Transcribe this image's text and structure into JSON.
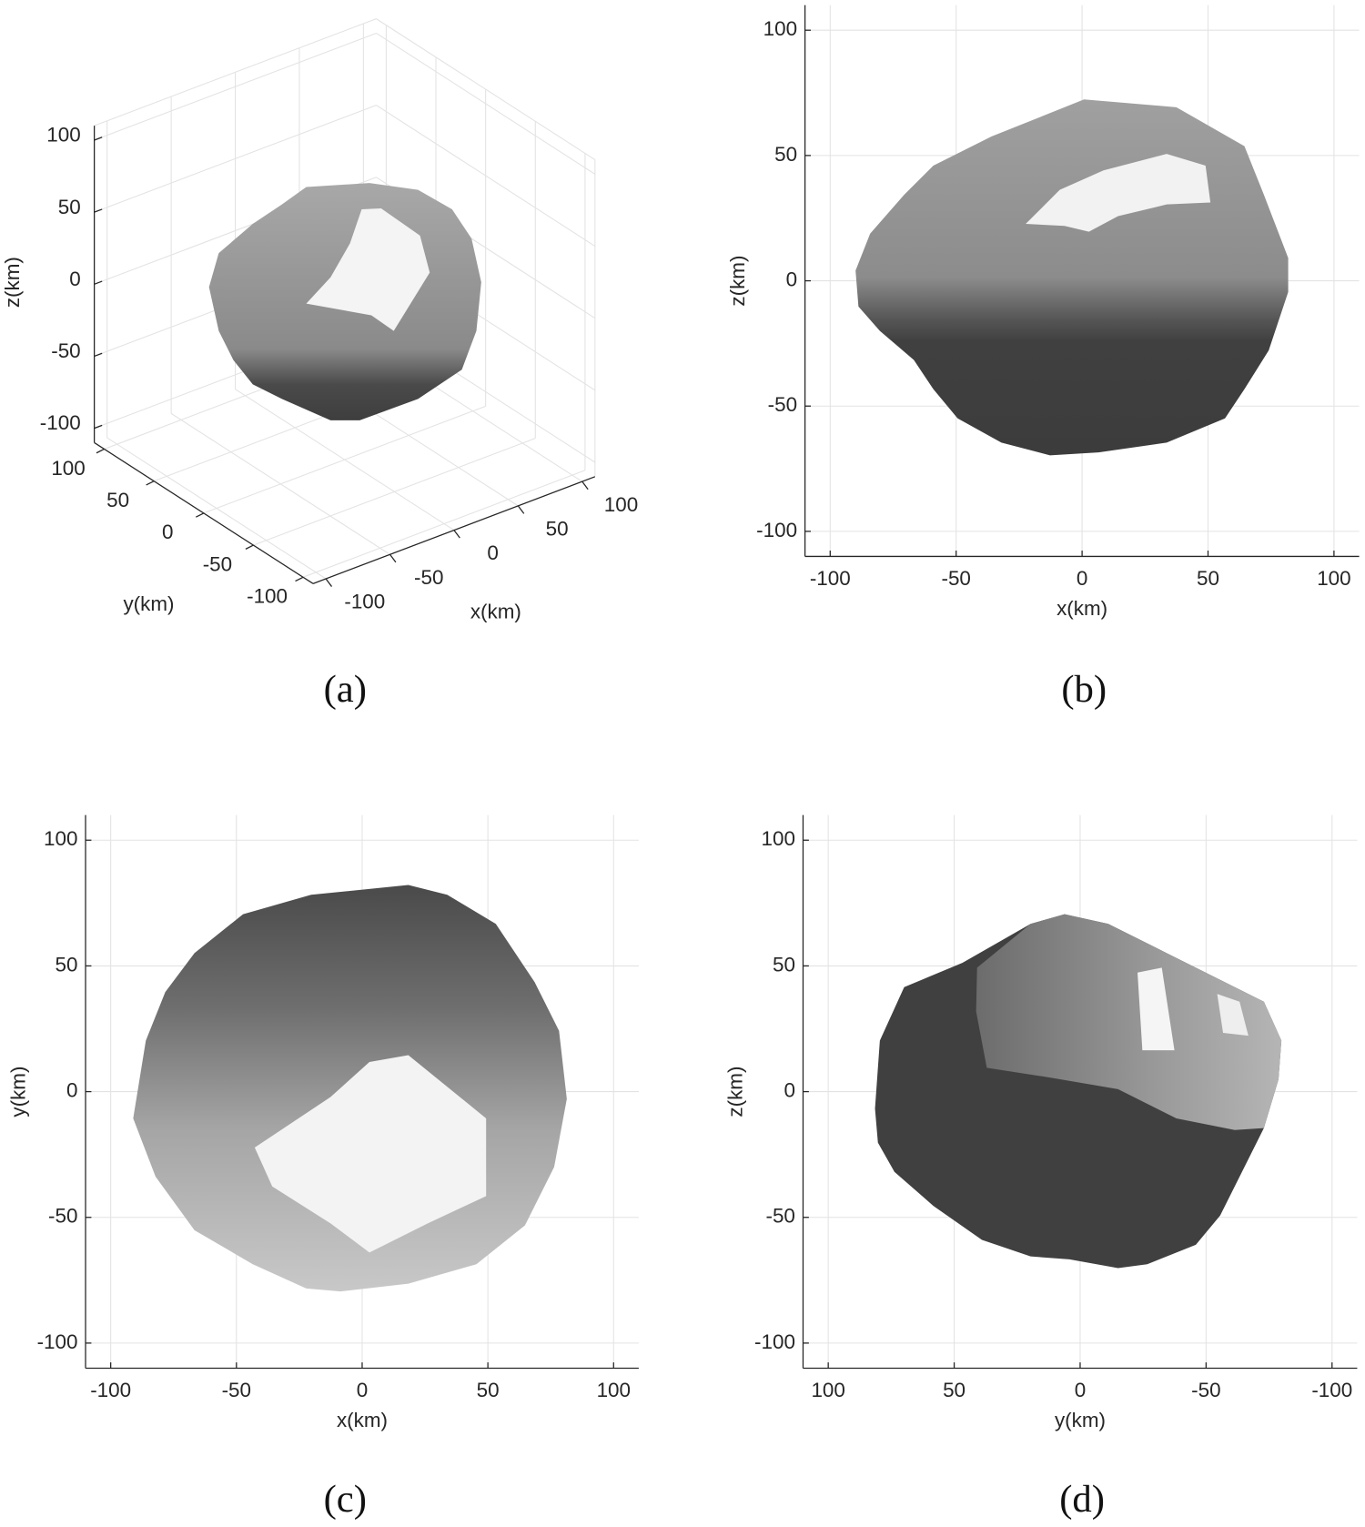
{
  "chart_data": [
    {
      "type": "surface3d",
      "label": "(a)",
      "xlabel": "x(km)",
      "ylabel": "y(km)",
      "zlabel": "z(km)",
      "xlim": [
        -110,
        110
      ],
      "ylim": [
        -110,
        110
      ],
      "zlim": [
        -110,
        110
      ],
      "xticks": [
        -100,
        -50,
        0,
        50,
        100
      ],
      "yticks": [
        -100,
        -50,
        0,
        50,
        100
      ],
      "zticks": [
        -100,
        -50,
        0,
        50,
        100
      ],
      "grid": true
    },
    {
      "type": "projection",
      "label": "(b)",
      "xlabel": "x(km)",
      "ylabel": "z(km)",
      "xlim": [
        -110,
        110
      ],
      "ylim": [
        -110,
        110
      ],
      "xticks": [
        -100,
        -50,
        0,
        50,
        100
      ],
      "yticks": [
        -100,
        -50,
        0,
        50,
        100
      ],
      "grid": true
    },
    {
      "type": "projection",
      "label": "(c)",
      "xlabel": "x(km)",
      "ylabel": "y(km)",
      "xlim": [
        -110,
        110
      ],
      "ylim": [
        -110,
        110
      ],
      "xticks": [
        -100,
        -50,
        0,
        50,
        100
      ],
      "yticks": [
        -100,
        -50,
        0,
        50,
        100
      ],
      "grid": true
    },
    {
      "type": "projection",
      "label": "(d)",
      "xlabel": "y(km)",
      "ylabel": "z(km)",
      "xlim": [
        110,
        -110
      ],
      "ylim": [
        -110,
        110
      ],
      "xticks": [
        100,
        50,
        0,
        -50,
        -100
      ],
      "yticks": [
        -100,
        -50,
        0,
        50,
        100
      ],
      "grid": true
    }
  ]
}
